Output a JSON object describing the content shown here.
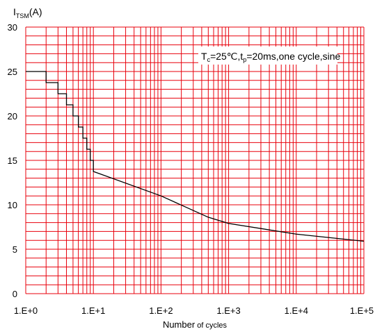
{
  "chart_data": {
    "type": "line",
    "ylabel_main": "I",
    "ylabel_sub": "TSM",
    "ylabel_unit": "(A)",
    "xlabel_main": "Number",
    "xlabel_rest": " of cycles",
    "x_scale": "log",
    "xlim": [
      1,
      100000
    ],
    "ylim": [
      0,
      30
    ],
    "x_ticks": [
      1,
      10,
      100,
      1000,
      10000,
      100000
    ],
    "x_tick_labels": [
      "1.E+0",
      "1.E+1",
      "1.E+2",
      "1.E+3",
      "1.E+4",
      "1.E+5"
    ],
    "y_ticks": [
      0,
      5,
      10,
      15,
      20,
      25,
      30
    ],
    "y_tick_labels": [
      "0",
      "5",
      "10",
      "15",
      "20",
      "25",
      "30"
    ],
    "grid": true,
    "grid_color": "#e8000b",
    "line_color": "#000000",
    "annotation": {
      "parts": [
        "T",
        "c",
        "=25℃,t",
        "p",
        "=20ms,one cycle,sine"
      ],
      "placement": "top-right"
    },
    "series": [
      {
        "points": [
          [
            1,
            25
          ],
          [
            2,
            25
          ],
          [
            2,
            23.75
          ],
          [
            3,
            23.75
          ],
          [
            3,
            22.5
          ],
          [
            4,
            22.5
          ],
          [
            4,
            21.25
          ],
          [
            5,
            21.25
          ],
          [
            5,
            20
          ],
          [
            6,
            20
          ],
          [
            6,
            18.75
          ],
          [
            7,
            18.75
          ],
          [
            7,
            17.5
          ],
          [
            8,
            17.5
          ],
          [
            8,
            16.25
          ],
          [
            9,
            16.25
          ],
          [
            9,
            15
          ],
          [
            10,
            15
          ],
          [
            10,
            13.75
          ],
          [
            100,
            11
          ],
          [
            500,
            8.6
          ],
          [
            1000,
            7.9
          ],
          [
            10000,
            6.7
          ],
          [
            100000,
            5.9
          ]
        ]
      }
    ]
  }
}
